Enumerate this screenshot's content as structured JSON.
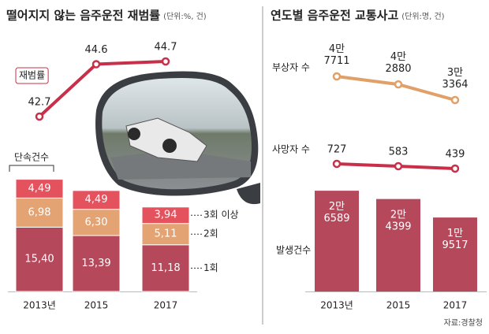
{
  "source": "자료:경찰청",
  "chart_data": [
    {
      "type": "combo",
      "title": "떨어지지 않는 음주운전 재범률",
      "unit": "(단위:%, 건)",
      "categories": [
        "2013년",
        "2015",
        "2017"
      ],
      "stacked": true,
      "bar_title": "단속건수",
      "series": [
        {
          "name": "1회",
          "color": "#b5495b",
          "values": [
            15.4,
            13.39,
            11.18
          ],
          "value_labels": [
            "15,40",
            "13,39",
            "11,18"
          ]
        },
        {
          "name": "2회",
          "color": "#e3a373",
          "values": [
            6.98,
            6.3,
            5.11
          ],
          "value_labels": [
            "6,98",
            "6,30",
            "5,11"
          ]
        },
        {
          "name": "3회 이상",
          "color": "#e4525e",
          "values": [
            4.49,
            4.49,
            3.94
          ],
          "value_labels": [
            "4,49",
            "4,49",
            "3,94"
          ]
        }
      ],
      "lines": [
        {
          "name": "재범률",
          "color": "#c8304a",
          "values": [
            42.7,
            44.6,
            44.7
          ]
        }
      ]
    },
    {
      "type": "combo",
      "title": "연도별 음주운전 교통사고",
      "unit": "(단위:명, 건)",
      "categories": [
        "2013년",
        "2015",
        "2017"
      ],
      "stacked": false,
      "series": [
        {
          "name": "발생건수",
          "color": "#b5495b",
          "values": [
            26589,
            24399,
            19517
          ],
          "value_labels": [
            "2만 6589",
            "2만 4399",
            "1만 9517"
          ]
        }
      ],
      "lines": [
        {
          "name": "부상자 수",
          "color": "#e0a068",
          "values": [
            47711,
            42880,
            33364
          ],
          "value_labels": [
            "4만 7711",
            "4만 2880",
            "3만 3364"
          ]
        },
        {
          "name": "사망자 수",
          "color": "#c8304a",
          "values": [
            727,
            583,
            439
          ]
        }
      ]
    }
  ]
}
